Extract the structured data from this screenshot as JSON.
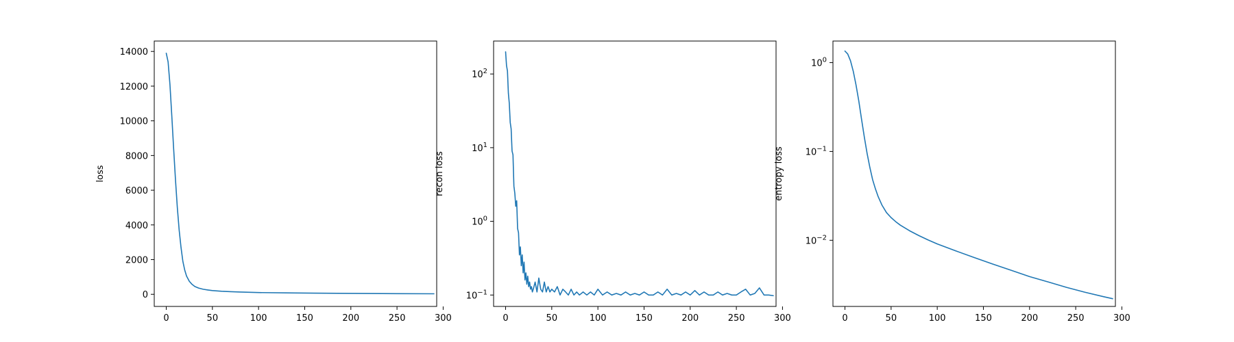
{
  "chart_data": [
    {
      "type": "line",
      "title": "",
      "xlabel": "",
      "ylabel": "loss",
      "yscale": "linear",
      "xlim": [
        -13,
        293
      ],
      "ylim": [
        -700,
        14600
      ],
      "xticks": [
        0,
        50,
        100,
        150,
        200,
        250,
        300
      ],
      "yticks": [
        {
          "value": 0,
          "label": "0"
        },
        {
          "value": 2000,
          "label": "2000"
        },
        {
          "value": 4000,
          "label": "4000"
        },
        {
          "value": 6000,
          "label": "6000"
        },
        {
          "value": 8000,
          "label": "8000"
        },
        {
          "value": 10000,
          "label": "10000"
        },
        {
          "value": 12000,
          "label": "12000"
        },
        {
          "value": 14000,
          "label": "14000"
        }
      ],
      "grid": false,
      "color": "#1f77b4",
      "series": [
        {
          "x": [
            0,
            2,
            4,
            6,
            8,
            10,
            12,
            14,
            16,
            18,
            20,
            22,
            25,
            28,
            31,
            35,
            40,
            45,
            50,
            60,
            70,
            80,
            100,
            130,
            160,
            200,
            250,
            290
          ],
          "y": [
            13900,
            13400,
            12100,
            10300,
            8400,
            6600,
            5000,
            3700,
            2700,
            1900,
            1400,
            1050,
            750,
            570,
            450,
            360,
            290,
            250,
            215,
            175,
            150,
            130,
            100,
            80,
            65,
            50,
            38,
            30
          ]
        }
      ]
    },
    {
      "type": "line",
      "title": "",
      "xlabel": "",
      "ylabel": "recon loss",
      "yscale": "log",
      "xlim": [
        -13,
        293
      ],
      "ylim": [
        0.07,
        280
      ],
      "xticks": [
        0,
        50,
        100,
        150,
        200,
        250,
        300
      ],
      "yticks": [
        {
          "value": 0.1,
          "base": "10",
          "exp": "−1"
        },
        {
          "value": 1,
          "base": "10",
          "exp": "0"
        },
        {
          "value": 10,
          "base": "10",
          "exp": "1"
        },
        {
          "value": 100,
          "base": "10",
          "exp": "2"
        }
      ],
      "grid": false,
      "color": "#1f77b4",
      "series": [
        {
          "x": [
            0,
            1,
            2,
            3,
            4,
            5,
            6,
            7,
            8,
            9,
            10,
            11,
            12,
            13,
            14,
            15,
            16,
            17,
            18,
            19,
            20,
            21,
            22,
            23,
            24,
            25,
            26,
            27,
            28,
            29,
            30,
            32,
            34,
            36,
            38,
            40,
            42,
            44,
            46,
            48,
            50,
            53,
            56,
            59,
            62,
            65,
            68,
            71,
            74,
            77,
            80,
            84,
            88,
            92,
            96,
            100,
            105,
            110,
            115,
            120,
            125,
            130,
            135,
            140,
            145,
            150,
            155,
            160,
            165,
            170,
            175,
            180,
            185,
            190,
            195,
            200,
            205,
            210,
            215,
            220,
            225,
            230,
            235,
            240,
            245,
            250,
            255,
            260,
            265,
            270,
            275,
            280,
            285,
            290
          ],
          "y": [
            200,
            130,
            110,
            55,
            40,
            22,
            18,
            9,
            8,
            3,
            2.4,
            1.6,
            1.9,
            0.8,
            0.7,
            0.35,
            0.45,
            0.25,
            0.35,
            0.2,
            0.28,
            0.16,
            0.2,
            0.14,
            0.18,
            0.13,
            0.15,
            0.12,
            0.13,
            0.11,
            0.12,
            0.15,
            0.11,
            0.17,
            0.12,
            0.11,
            0.15,
            0.11,
            0.13,
            0.11,
            0.12,
            0.11,
            0.13,
            0.1,
            0.12,
            0.11,
            0.1,
            0.12,
            0.1,
            0.11,
            0.1,
            0.11,
            0.1,
            0.11,
            0.1,
            0.12,
            0.1,
            0.11,
            0.1,
            0.105,
            0.1,
            0.11,
            0.1,
            0.105,
            0.1,
            0.11,
            0.1,
            0.1,
            0.11,
            0.1,
            0.12,
            0.1,
            0.105,
            0.1,
            0.11,
            0.1,
            0.115,
            0.1,
            0.11,
            0.1,
            0.1,
            0.11,
            0.1,
            0.105,
            0.1,
            0.1,
            0.11,
            0.12,
            0.1,
            0.105,
            0.125,
            0.1,
            0.1,
            0.098
          ]
        }
      ]
    },
    {
      "type": "line",
      "title": "",
      "xlabel": "",
      "ylabel": "entropy loss",
      "yscale": "log",
      "xlim": [
        -13,
        293
      ],
      "ylim": [
        0.0018,
        1.75
      ],
      "xticks": [
        0,
        50,
        100,
        150,
        200,
        250,
        300
      ],
      "yticks": [
        {
          "value": 0.01,
          "base": "10",
          "exp": "−2"
        },
        {
          "value": 0.1,
          "base": "10",
          "exp": "−1"
        },
        {
          "value": 1,
          "base": "10",
          "exp": "0"
        }
      ],
      "grid": false,
      "color": "#1f77b4",
      "series": [
        {
          "x": [
            0,
            3,
            6,
            9,
            12,
            15,
            18,
            21,
            24,
            27,
            30,
            33,
            36,
            40,
            45,
            50,
            55,
            60,
            70,
            80,
            90,
            100,
            120,
            140,
            160,
            180,
            200,
            220,
            240,
            260,
            280,
            290
          ],
          "y": [
            1.35,
            1.25,
            1.05,
            0.8,
            0.56,
            0.37,
            0.23,
            0.145,
            0.095,
            0.066,
            0.048,
            0.038,
            0.031,
            0.025,
            0.0205,
            0.018,
            0.0162,
            0.0148,
            0.0128,
            0.0113,
            0.0101,
            0.0091,
            0.0076,
            0.0064,
            0.0054,
            0.0046,
            0.0039,
            0.0034,
            0.00295,
            0.0026,
            0.00232,
            0.0022
          ]
        }
      ]
    }
  ]
}
